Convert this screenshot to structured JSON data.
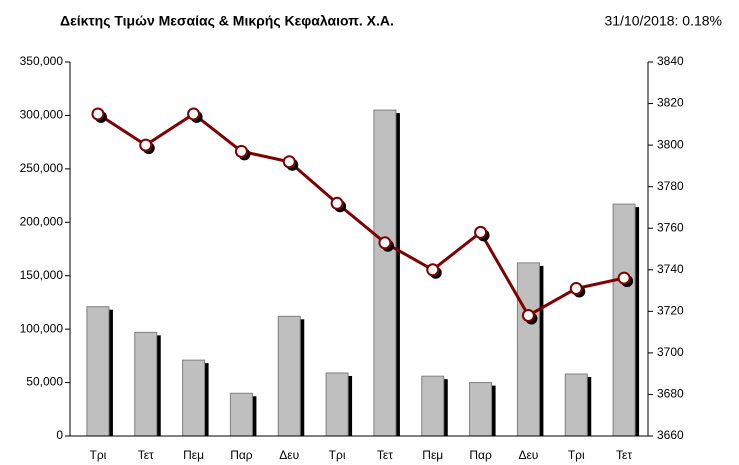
{
  "chart_data": {
    "type": "bar-line",
    "title": "Δείκτης Τιμών Μεσαίας & Μικρής Κεφαλαιοπ.  Χ.Α.",
    "subtitle": "31/10/2018: 0.18%",
    "categories": [
      "Τρι",
      "Τετ",
      "Πεμ",
      "Παρ",
      "Δευ",
      "Τρι",
      "Τετ",
      "Πεμ",
      "Παρ",
      "Δευ",
      "Τρι",
      "Τετ"
    ],
    "series": [
      {
        "color": "#bfbfbf",
        "values": [
          121000,
          97000,
          71000,
          40000,
          112000,
          59000,
          305000,
          56000,
          50000,
          162000,
          58000,
          217000
        ]
      },
      {
        "color": "#800000",
        "axis": "y2",
        "values": [
          3815,
          3800,
          3815,
          3797,
          3792,
          3772,
          3753,
          3740,
          3758,
          3718,
          3731,
          3736
        ]
      }
    ],
    "ylim": [
      0,
      350000
    ],
    "yticks": [
      0,
      {
        "value": 50000,
        "label": "50,000"
      },
      {
        "value": 100000,
        "label": "100,000"
      },
      {
        "value": 150000,
        "label": "150,000"
      },
      {
        "value": 200000,
        "label": "200,000"
      },
      {
        "value": 250000,
        "label": "250,000"
      },
      {
        "value": 300000,
        "label": "300,000"
      },
      {
        "value": 350000,
        "label": "350,000"
      }
    ],
    "y2lim": [
      3660,
      3840
    ],
    "y2ticks": [
      3660,
      3680,
      3700,
      3720,
      3740,
      3760,
      3780,
      3800,
      3820,
      3840
    ]
  }
}
